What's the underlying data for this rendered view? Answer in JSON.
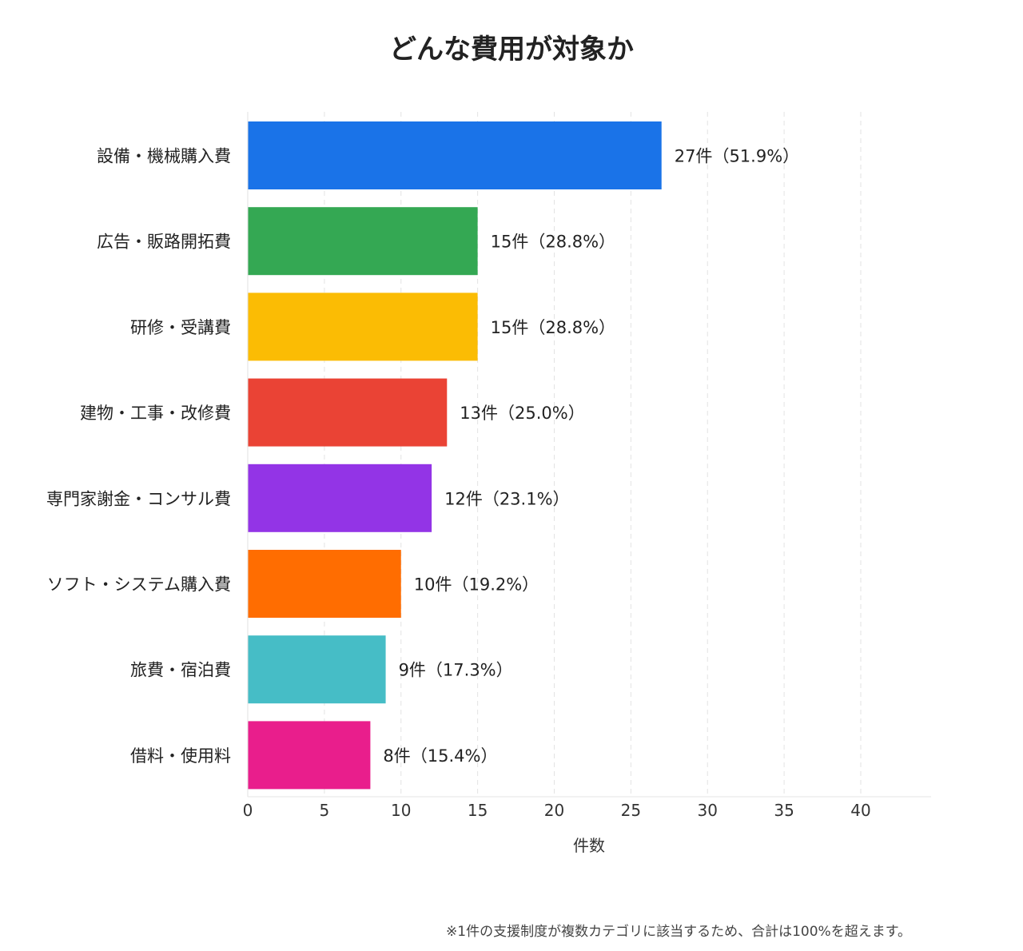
{
  "chart_data": {
    "type": "bar",
    "orientation": "horizontal",
    "title": "どんな費用が対象か",
    "xlabel": "件数",
    "ylabel": "",
    "xlim": [
      0,
      44.5
    ],
    "xticks": [
      0,
      5,
      10,
      15,
      20,
      25,
      30,
      35,
      40
    ],
    "grid": "vertical dashed",
    "categories": [
      "設備・機械購入費",
      "広告・販路開拓費",
      "研修・受講費",
      "建物・工事・改修費",
      "専門家謝金・コンサル費",
      "ソフト・システム購入費",
      "旅費・宿泊費",
      "借料・使用料"
    ],
    "values": [
      27,
      15,
      15,
      13,
      12,
      10,
      9,
      8
    ],
    "data_labels": [
      "27件（51.9%）",
      "15件（28.8%）",
      "15件（28.8%）",
      "13件（25.0%）",
      "12件（23.1%）",
      "10件（19.2%）",
      "9件（17.3%）",
      "8件（15.4%）"
    ],
    "colors": [
      "#1a73e8",
      "#34a853",
      "#fbbc04",
      "#ea4335",
      "#9334e6",
      "#ff6d01",
      "#46bdc6",
      "#e91e8c"
    ]
  },
  "footnote": "※1件の支援制度が複数カテゴリに該当するため、合計は100%を超えます。"
}
